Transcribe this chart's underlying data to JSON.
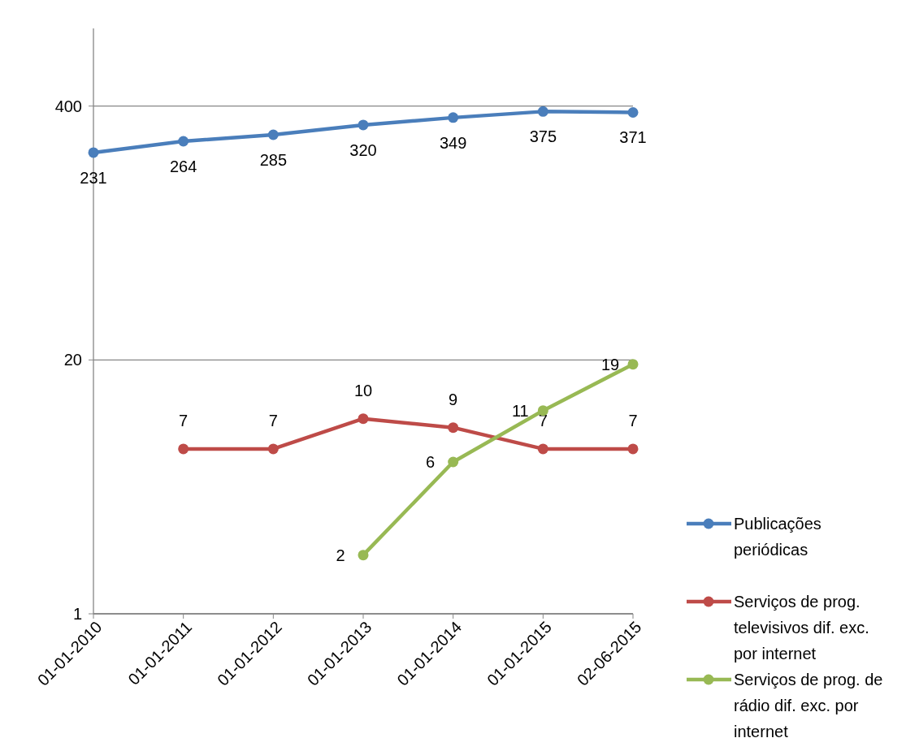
{
  "chart_data": {
    "type": "line",
    "categories": [
      "01-01-2010",
      "01-01-2011",
      "01-01-2012",
      "01-01-2013",
      "01-01-2014",
      "01-01-2015",
      "02-06-2015"
    ],
    "series": [
      {
        "name": "Publicações periódicas",
        "color": "#4a7ebb",
        "values": [
          231,
          264,
          285,
          320,
          349,
          375,
          371
        ]
      },
      {
        "name": "Serviços de prog. televisivos dif. exc. por internet",
        "color": "#be4b48",
        "values": [
          null,
          7,
          7,
          10,
          9,
          7,
          7
        ]
      },
      {
        "name": "Serviços de prog. de rádio dif. exc. por internet",
        "color": "#98b954",
        "values": [
          null,
          null,
          null,
          2,
          6,
          11,
          19
        ]
      }
    ],
    "log": "y",
    "ylim": [
      1,
      1000
    ],
    "yticks": [
      1,
      20,
      400
    ],
    "grid": "y",
    "legend": "right",
    "marker": "circle",
    "line_style": "solid",
    "data_labels": true
  }
}
